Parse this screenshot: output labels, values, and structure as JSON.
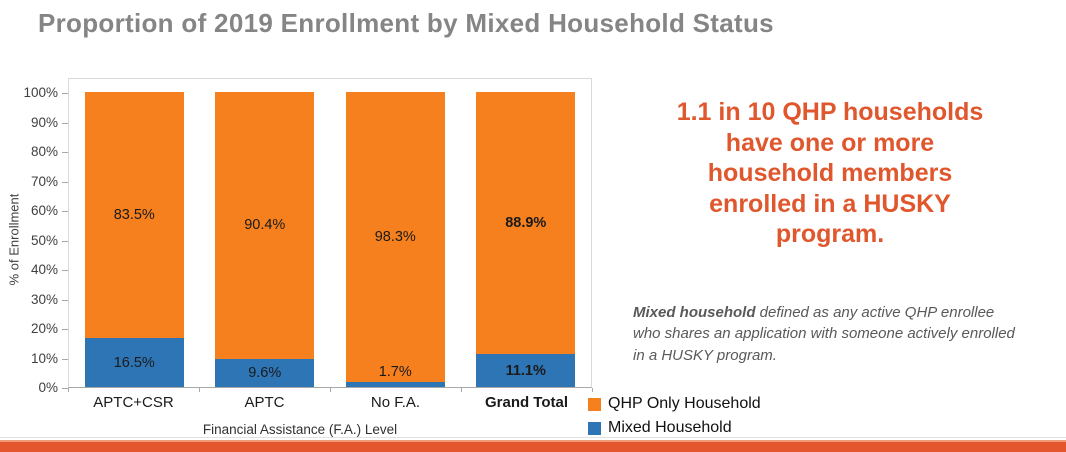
{
  "title": "Proportion of 2019 Enrollment by Mixed Household Status",
  "chart_data": {
    "type": "bar",
    "stacked": true,
    "title": "Proportion of 2019 Enrollment by Mixed Household Status",
    "categories": [
      "APTC+CSR",
      "APTC",
      "No F.A.",
      "Grand Total"
    ],
    "series": [
      {
        "name": "Mixed Household",
        "color": "#2E75B6",
        "values": [
          16.5,
          9.6,
          1.7,
          11.1
        ]
      },
      {
        "name": "QHP Only Household",
        "color": "#F6801E",
        "values": [
          83.5,
          90.4,
          98.3,
          88.9
        ]
      }
    ],
    "value_suffix": "%",
    "xlabel": "Financial Assistance (F.A.) Level",
    "ylabel": "% of Enrollment",
    "ylim": [
      0,
      100
    ],
    "ytick_step": 10,
    "grid": false,
    "legend_position": "bottom-right",
    "emphasized_category": "Grand Total"
  },
  "legend": {
    "items": [
      {
        "label": "QHP Only Household",
        "color": "#F6801E"
      },
      {
        "label": "Mixed Household",
        "color": "#2E75B6"
      }
    ]
  },
  "callout": {
    "lines": [
      "1.1 in 10 QHP households",
      "have one or more",
      "household members",
      "enrolled in a HUSKY",
      "program."
    ],
    "color": "#E0572E"
  },
  "note": {
    "lead": "Mixed household",
    "line1_rest": " defined as any active QHP enrollee",
    "line2": "who shares an application with someone actively enrolled",
    "line3": "in a HUSKY program."
  },
  "footer": {
    "bar_color": "#E4572E"
  },
  "colors": {
    "title_gray": "#858585",
    "note_gray": "#595959"
  }
}
